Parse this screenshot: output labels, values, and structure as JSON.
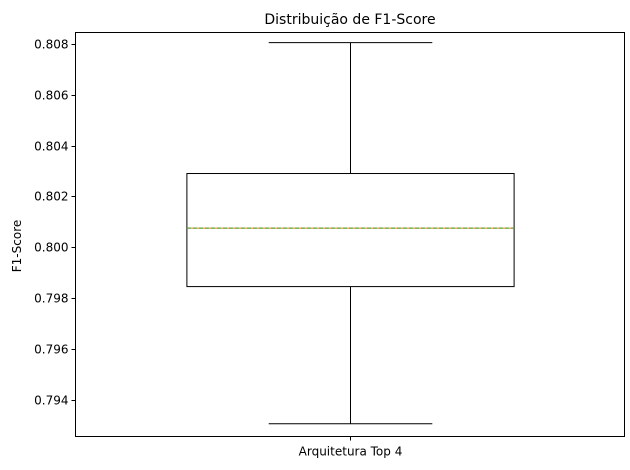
{
  "chart_data": {
    "type": "box",
    "title": "Distribuição de F1-Score",
    "xlabel": "",
    "ylabel": "F1-Score",
    "categories": [
      "Arquitetura Top 4"
    ],
    "ylim": [
      0.79255,
      0.80845
    ],
    "yticks": [
      "0.794",
      "0.796",
      "0.798",
      "0.800",
      "0.802",
      "0.804",
      "0.806",
      "0.808"
    ],
    "grid": false,
    "boxes": [
      {
        "category": "Arquitetura Top 4",
        "whisker_low": 0.79305,
        "q1": 0.79845,
        "median": 0.80075,
        "mean": 0.80075,
        "q3": 0.8029,
        "whisker_high": 0.80805
      }
    ],
    "colors": {
      "box_edge": "#000000",
      "median": "#ff7f0e",
      "mean": "#2ca02c"
    }
  }
}
